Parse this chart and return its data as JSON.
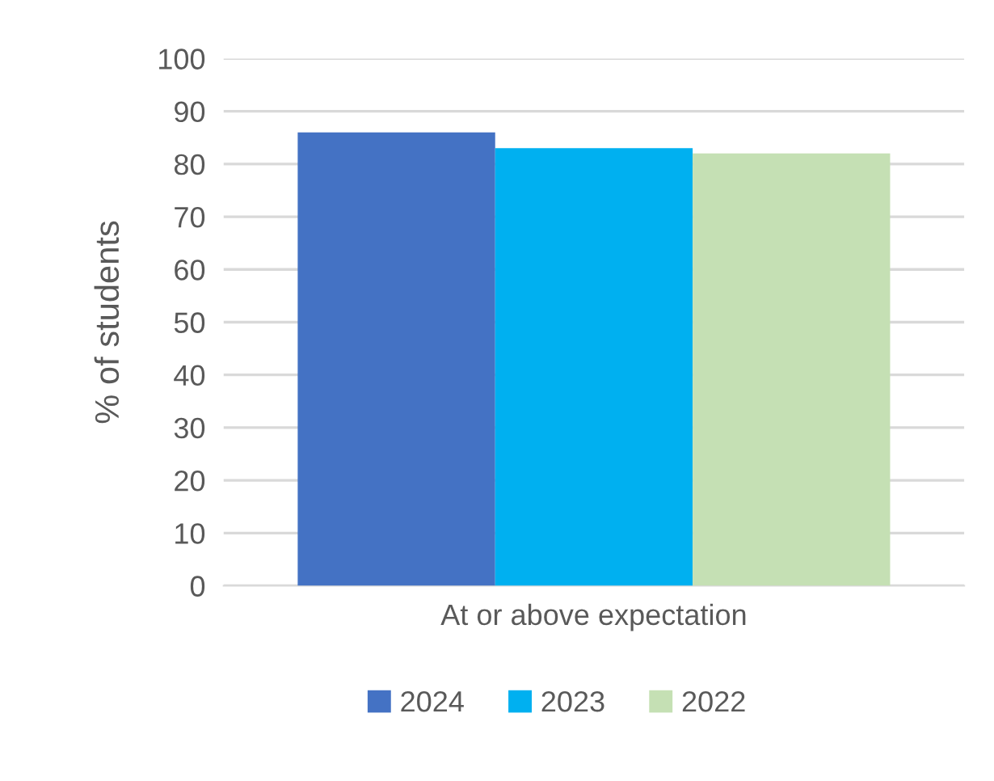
{
  "chart_data": {
    "type": "bar",
    "ylabel": "% of students",
    "categories": [
      "At or above expectation"
    ],
    "series": [
      {
        "name": "2024",
        "color": "#4472c4",
        "values": [
          86
        ]
      },
      {
        "name": "2023",
        "color": "#00b0f0",
        "values": [
          83
        ]
      },
      {
        "name": "2022",
        "color": "#c5e0b4",
        "values": [
          82
        ]
      }
    ],
    "ylim": [
      0,
      100
    ],
    "yticks": [
      0,
      10,
      20,
      30,
      40,
      50,
      60,
      70,
      80,
      90,
      100
    ],
    "grid": "y",
    "legend": "bottom"
  }
}
